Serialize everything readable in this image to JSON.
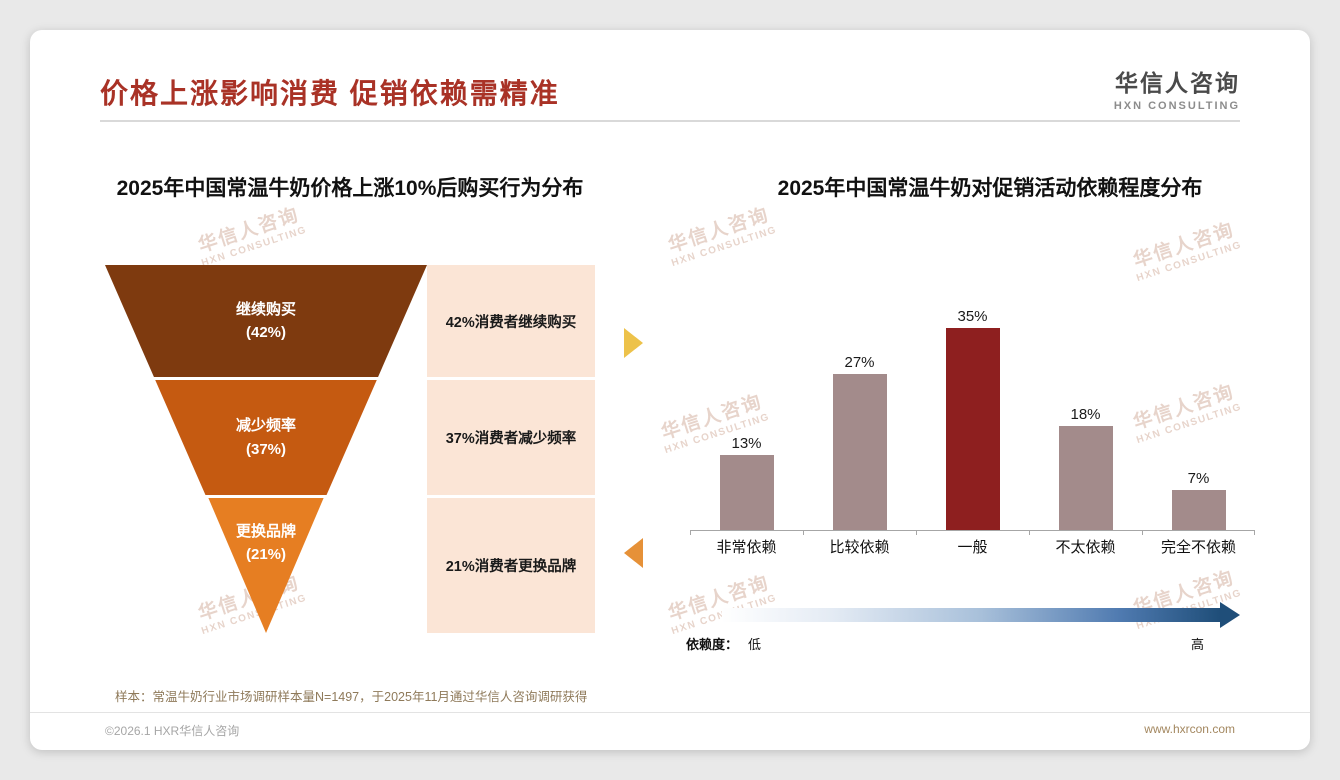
{
  "header": {
    "title": "价格上涨影响消费 促销依赖需精准"
  },
  "logo": {
    "name": "华信人咨询",
    "subtitle": "HXN CONSULTING"
  },
  "watermark": {
    "line1": "华信人咨询",
    "line2": "HXN CONSULTING"
  },
  "theme": {
    "title_color": "#a93226",
    "funnel_panel_bg": "#fbe5d6",
    "bar_color": "#a38b8b",
    "bar_highlight_color": "#8e1f1f",
    "arrow_right_color": "#edc24a",
    "arrow_left_color": "#e69138",
    "gradient_dark": "#1f4e79"
  },
  "chart_data": [
    {
      "type": "funnel",
      "title": "2025年中国常温牛奶价格上涨10%后购买行为分布",
      "stages": [
        {
          "label": "继续购买",
          "pct": "(42%)",
          "value": 42,
          "desc": "42%消费者继续购买",
          "color": "#7e3a0f"
        },
        {
          "label": "减少频率",
          "pct": "(37%)",
          "value": 37,
          "desc": "37%消费者减少频率",
          "color": "#c55a11"
        },
        {
          "label": "更换品牌",
          "pct": "(21%)",
          "value": 21,
          "desc": "21%消费者更换品牌",
          "color": "#e67e22"
        }
      ]
    },
    {
      "type": "bar",
      "title": "2025年中国常温牛奶对促销活动依赖程度分布",
      "categories": [
        "非常依赖",
        "比较依赖",
        "一般",
        "不太依赖",
        "完全不依赖"
      ],
      "values": [
        13,
        27,
        35,
        18,
        7
      ],
      "value_labels": [
        "13%",
        "27%",
        "35%",
        "18%",
        "7%"
      ],
      "ylim": [
        0,
        40
      ],
      "highlight_index": 2,
      "axis_note": {
        "label": "依赖度：",
        "low": "低",
        "high": "高"
      }
    }
  ],
  "footnote": "样本：常温牛奶行业市场调研样本量N=1497，于2025年11月通过华信人咨询调研获得",
  "footer": {
    "copyright": "©2026.1 HXR华信人咨询",
    "website": "www.hxrcon.com"
  }
}
